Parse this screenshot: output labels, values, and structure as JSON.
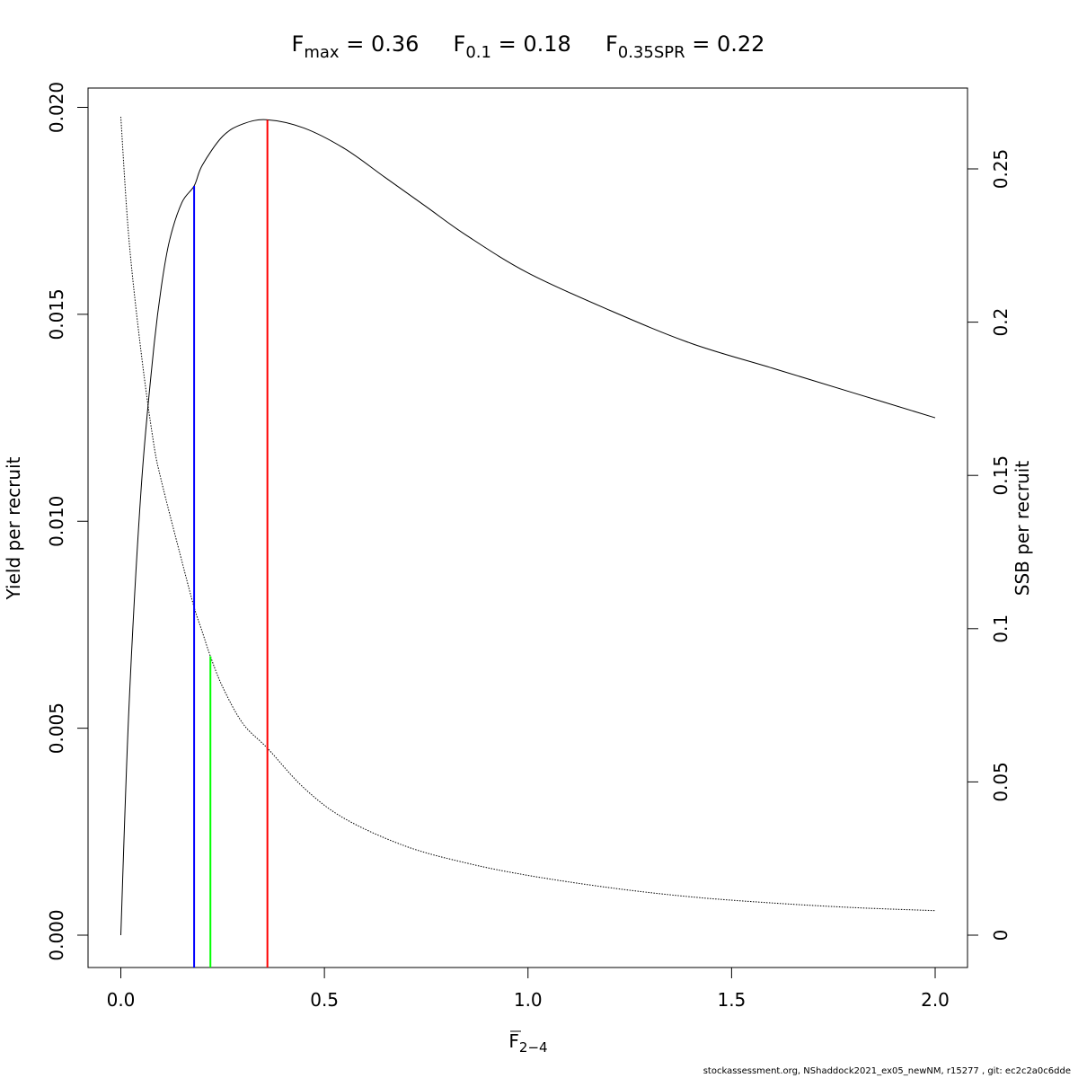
{
  "chart_data": {
    "type": "line",
    "title_parts": [
      {
        "base": "F",
        "sub": "max",
        "eq": " = ",
        "value": "0.36"
      },
      {
        "base": "F",
        "sub": "0.1",
        "eq": " = ",
        "value": "0.18"
      },
      {
        "base": "F",
        "sub": "0.35SPR",
        "eq": " = ",
        "value": "0.22"
      }
    ],
    "xlabel": {
      "base": "F",
      "sub": "2−4"
    },
    "ylabel_left": "Yield per recruit",
    "ylabel_right": "SSB per recruit",
    "xlim": [
      0.0,
      2.0
    ],
    "ylim_left": [
      0.0,
      0.02
    ],
    "ylim_right": [
      0.0,
      0.27
    ],
    "x_ticks": [
      "0.0",
      "0.5",
      "1.0",
      "1.5",
      "2.0"
    ],
    "x_tick_values": [
      0.0,
      0.5,
      1.0,
      1.5,
      2.0
    ],
    "y_left_ticks": [
      "0.000",
      "0.005",
      "0.010",
      "0.015",
      "0.020"
    ],
    "y_left_tick_values": [
      0.0,
      0.005,
      0.01,
      0.015,
      0.02
    ],
    "y_right_ticks": [
      "0",
      "0.05",
      "0.1",
      "0.15",
      "0.2",
      "0.25"
    ],
    "y_right_tick_values": [
      0.0,
      0.05,
      0.1,
      0.15,
      0.2,
      0.25
    ],
    "series": [
      {
        "name": "Yield per recruit",
        "axis": "left",
        "style": "solid",
        "color": "#000000",
        "x": [
          0.0,
          0.02,
          0.05,
          0.08,
          0.1,
          0.12,
          0.15,
          0.18,
          0.2,
          0.25,
          0.3,
          0.36,
          0.45,
          0.55,
          0.65,
          0.75,
          0.85,
          1.0,
          1.2,
          1.4,
          1.6,
          1.8,
          2.0
        ],
        "y": [
          0.0,
          0.0055,
          0.0108,
          0.0141,
          0.0157,
          0.0168,
          0.0177,
          0.0181,
          0.0186,
          0.0193,
          0.0196,
          0.0197,
          0.0195,
          0.019,
          0.0183,
          0.0176,
          0.0169,
          0.016,
          0.0151,
          0.0143,
          0.0137,
          0.0131,
          0.0125
        ]
      },
      {
        "name": "SSB per recruit",
        "axis": "right",
        "style": "dotted",
        "color": "#000000",
        "x": [
          0.0,
          0.02,
          0.05,
          0.08,
          0.1,
          0.15,
          0.18,
          0.2,
          0.22,
          0.25,
          0.3,
          0.36,
          0.45,
          0.55,
          0.7,
          0.85,
          1.0,
          1.2,
          1.4,
          1.6,
          1.8,
          2.0
        ],
        "y": [
          0.267,
          0.227,
          0.19,
          0.161,
          0.148,
          0.122,
          0.107,
          0.099,
          0.091,
          0.081,
          0.069,
          0.061,
          0.048,
          0.038,
          0.029,
          0.0235,
          0.0195,
          0.0155,
          0.0125,
          0.0105,
          0.009,
          0.008
        ]
      }
    ],
    "reference_lines": [
      {
        "name": "F0.1",
        "x": 0.18,
        "axis": "left",
        "y_top": 0.0181,
        "color": "#0000ff"
      },
      {
        "name": "F0.35SPR",
        "x": 0.22,
        "axis": "right",
        "y_top": 0.091,
        "color": "#00ff00"
      },
      {
        "name": "Fmax",
        "x": 0.36,
        "axis": "left",
        "y_top": 0.0197,
        "color": "#ff0000"
      }
    ],
    "grid": false,
    "legend": "none"
  },
  "footer": "stockassessment.org, NShaddock2021_ex05_newNM, r15277 , git: ec2c2a0c6dde"
}
